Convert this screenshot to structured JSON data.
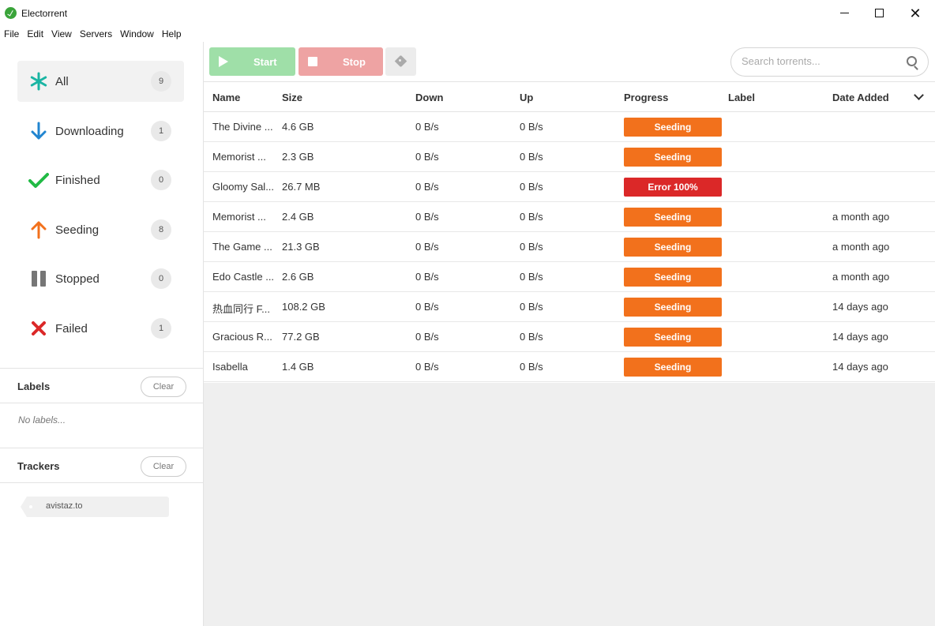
{
  "window": {
    "title": "Electorrent"
  },
  "menu": [
    "File",
    "Edit",
    "View",
    "Servers",
    "Window",
    "Help"
  ],
  "sidebar": {
    "filters": [
      {
        "label": "All",
        "count": "9",
        "icon": "asterisk-icon",
        "color": "#1ab5a3"
      },
      {
        "label": "Downloading",
        "count": "1",
        "icon": "arrow-down-icon",
        "color": "#2185d0"
      },
      {
        "label": "Finished",
        "count": "0",
        "icon": "check-icon",
        "color": "#21ba45"
      },
      {
        "label": "Seeding",
        "count": "8",
        "icon": "arrow-up-icon",
        "color": "#f2711c"
      },
      {
        "label": "Stopped",
        "count": "0",
        "icon": "pause-icon",
        "color": "#767676"
      },
      {
        "label": "Failed",
        "count": "1",
        "icon": "x-icon",
        "color": "#db2828"
      }
    ],
    "labels": {
      "title": "Labels",
      "clear": "Clear",
      "empty": "No labels..."
    },
    "trackers": {
      "title": "Trackers",
      "clear": "Clear",
      "items": [
        "avistaz.to"
      ]
    }
  },
  "toolbar": {
    "start": "Start",
    "stop": "Stop",
    "search_placeholder": "Search torrents..."
  },
  "table": {
    "columns": [
      "Name",
      "Size",
      "Down",
      "Up",
      "Progress",
      "Label",
      "Date Added"
    ],
    "rows": [
      {
        "name": "The Divine ...",
        "size": "4.6 GB",
        "down": "0 B/s",
        "up": "0 B/s",
        "progress": "Seeding",
        "status": "seeding",
        "label": "",
        "date": ""
      },
      {
        "name": "Memorist ...",
        "size": "2.3 GB",
        "down": "0 B/s",
        "up": "0 B/s",
        "progress": "Seeding",
        "status": "seeding",
        "label": "",
        "date": ""
      },
      {
        "name": "Gloomy Sal...",
        "size": "26.7 MB",
        "down": "0 B/s",
        "up": "0 B/s",
        "progress": "Error 100%",
        "status": "error",
        "label": "",
        "date": ""
      },
      {
        "name": "Memorist ...",
        "size": "2.4 GB",
        "down": "0 B/s",
        "up": "0 B/s",
        "progress": "Seeding",
        "status": "seeding",
        "label": "",
        "date": "a month ago"
      },
      {
        "name": "The Game ...",
        "size": "21.3 GB",
        "down": "0 B/s",
        "up": "0 B/s",
        "progress": "Seeding",
        "status": "seeding",
        "label": "",
        "date": "a month ago"
      },
      {
        "name": "Edo Castle ...",
        "size": "2.6 GB",
        "down": "0 B/s",
        "up": "0 B/s",
        "progress": "Seeding",
        "status": "seeding",
        "label": "",
        "date": "a month ago"
      },
      {
        "name": "热血同行 F...",
        "size": "108.2 GB",
        "down": "0 B/s",
        "up": "0 B/s",
        "progress": "Seeding",
        "status": "seeding",
        "label": "",
        "date": "14 days ago"
      },
      {
        "name": "Gracious R...",
        "size": "77.2 GB",
        "down": "0 B/s",
        "up": "0 B/s",
        "progress": "Seeding",
        "status": "seeding",
        "label": "",
        "date": "14 days ago"
      },
      {
        "name": "Isabella",
        "size": "1.4 GB",
        "down": "0 B/s",
        "up": "0 B/s",
        "progress": "Seeding",
        "status": "seeding",
        "label": "",
        "date": "14 days ago"
      }
    ]
  },
  "colors": {
    "seeding": "#f2711c",
    "error": "#db2828",
    "start": "#9fdfa8",
    "stop": "#eea3a3"
  }
}
